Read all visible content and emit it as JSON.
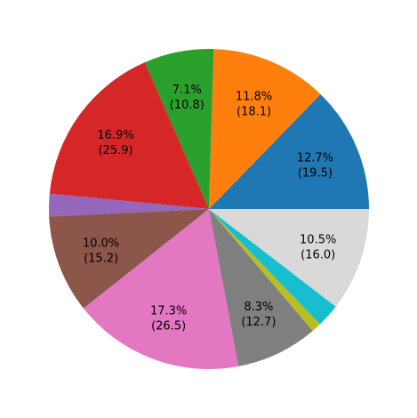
{
  "chart_data": {
    "type": "pie",
    "start_angle_deg": 0,
    "direction": "counterclockwise",
    "slices": [
      {
        "value": 19.5,
        "pct_label": "12.7%",
        "value_label": "(19.5)",
        "color": "#1f77b4",
        "show_label": true
      },
      {
        "value": 18.1,
        "pct_label": "11.8%",
        "value_label": "(18.1)",
        "color": "#ff7f0e",
        "show_label": true
      },
      {
        "value": 10.8,
        "pct_label": "7.1%",
        "value_label": "(10.8)",
        "color": "#2ca02c",
        "show_label": true
      },
      {
        "value": 25.9,
        "pct_label": "16.9%",
        "value_label": "(25.9)",
        "color": "#d62728",
        "show_label": true
      },
      {
        "value": 3.5,
        "pct_label": "",
        "value_label": "",
        "color": "#9467bd",
        "show_label": false
      },
      {
        "value": 15.2,
        "pct_label": "10.0%",
        "value_label": "(15.2)",
        "color": "#8c564b",
        "show_label": true
      },
      {
        "value": 26.5,
        "pct_label": "17.3%",
        "value_label": "(26.5)",
        "color": "#e377c2",
        "show_label": true
      },
      {
        "value": 12.7,
        "pct_label": "8.3%",
        "value_label": "(12.7)",
        "color": "#7f7f7f",
        "show_label": true
      },
      {
        "value": 1.5,
        "pct_label": "",
        "value_label": "",
        "color": "#bcbd22",
        "show_label": false
      },
      {
        "value": 3.6,
        "pct_label": "",
        "value_label": "",
        "color": "#17becf",
        "show_label": false
      },
      {
        "value": 16.0,
        "pct_label": "10.5%",
        "value_label": "(16.0)",
        "color": "#d9d9d9",
        "show_label": true
      }
    ]
  }
}
